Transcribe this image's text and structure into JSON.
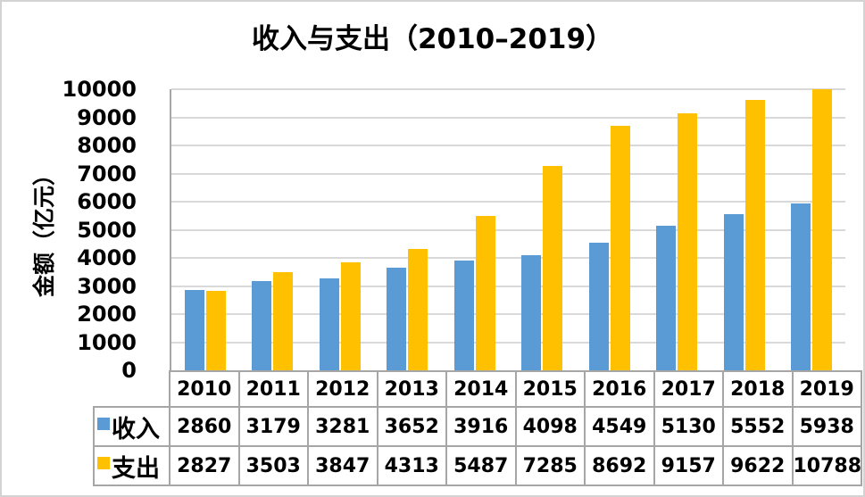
{
  "chart_data": {
    "type": "bar",
    "title": "收入与支出（2010–2019）",
    "ylabel": "金额（亿元）",
    "xlabel": "",
    "categories": [
      "2010",
      "2011",
      "2012",
      "2013",
      "2014",
      "2015",
      "2016",
      "2017",
      "2018",
      "2019"
    ],
    "series": [
      {
        "name": "收入",
        "color": "#5B9BD5",
        "values": [
          2860,
          3179,
          3281,
          3652,
          3916,
          4098,
          4549,
          5130,
          5552,
          5938
        ]
      },
      {
        "name": "支出",
        "color": "#FFC000",
        "values": [
          2827,
          3503,
          3847,
          4313,
          5487,
          7285,
          8692,
          9157,
          9622,
          10788
        ]
      }
    ],
    "ylim": [
      0,
      10000
    ],
    "ytick_labels": [
      "0",
      "1000",
      "2000",
      "3000",
      "4000",
      "5000",
      "6000",
      "7000",
      "8000",
      "9000",
      "10000"
    ],
    "grid": true,
    "gridline_color": "#D9D9D9",
    "axis_color": "#A6A6A6",
    "table_border_color": "#A6A6A6",
    "background_color": "#FFFFFF",
    "legend_position": "data-table-left",
    "note_bars_clipped_at_ymax": true
  }
}
